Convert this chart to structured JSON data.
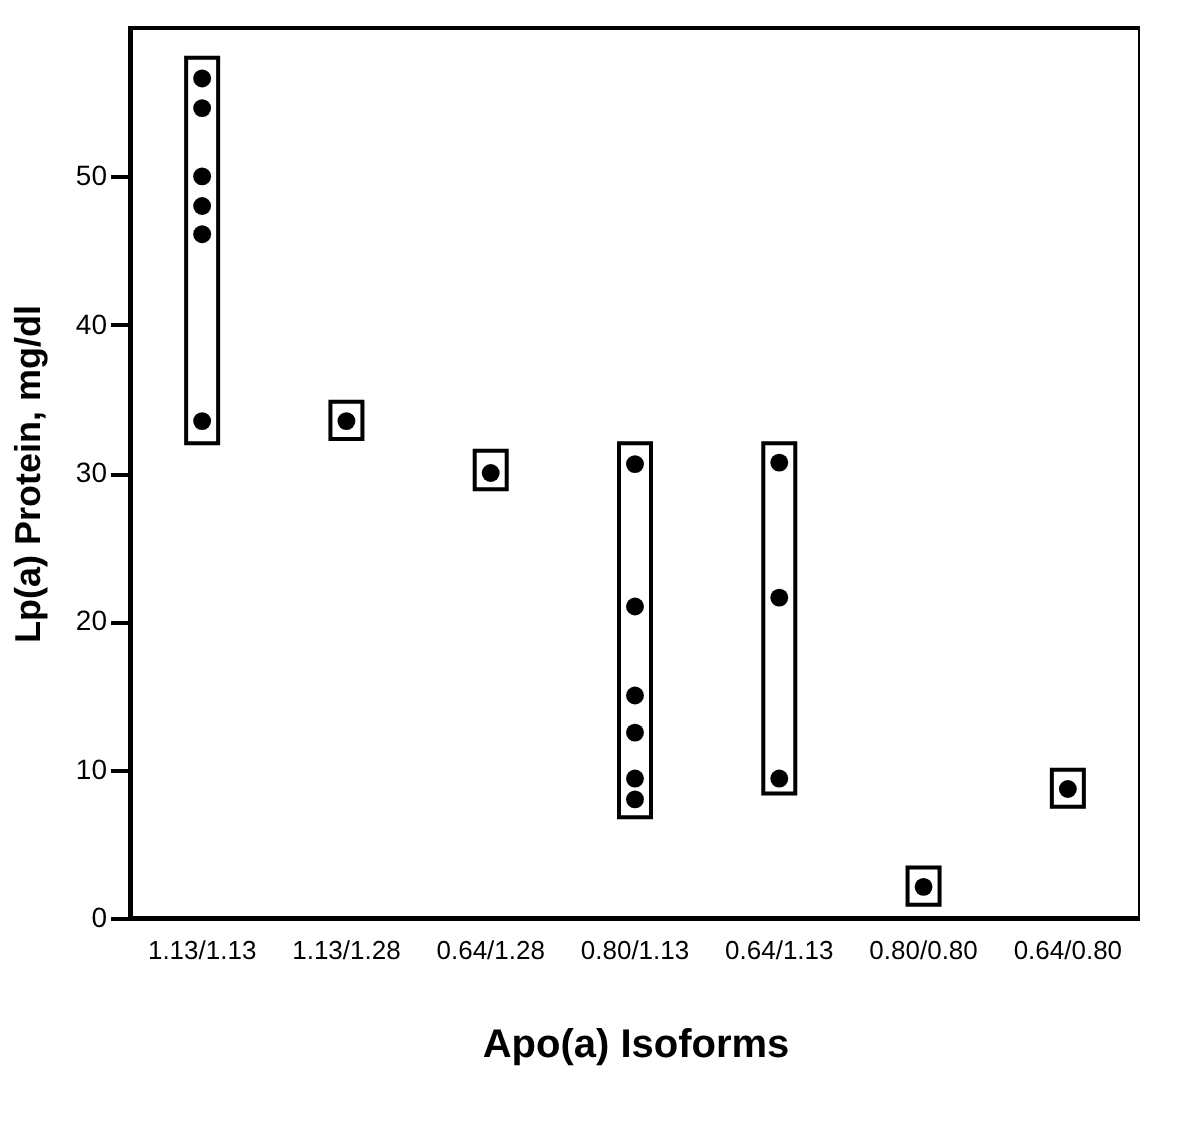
{
  "chart_data": {
    "type": "scatter",
    "xlabel": "Apo(a) Isoforms",
    "ylabel": "Lp(a) Protein, mg/dl",
    "categories": [
      "1.13/1.13",
      "1.13/1.28",
      "0.64/1.28",
      "0.80/1.13",
      "0.64/1.13",
      "0.80/0.80",
      "0.64/0.80"
    ],
    "ylim": [
      0,
      60
    ],
    "yticks": [
      0,
      10,
      20,
      30,
      40,
      50
    ],
    "grid": false,
    "marker": "circle",
    "series": [
      {
        "type": "bar",
        "color": "#000000",
        "base": [
          32,
          32.3,
          28.9,
          6.8,
          8.4,
          0.9,
          7.5
        ],
        "values": [
          26,
          2.5,
          2.6,
          25.2,
          23.6,
          2.5,
          2.5
        ]
      },
      {
        "color": "#000000",
        "x": [
          "1.13/1.13",
          "1.13/1.13",
          "1.13/1.13",
          "1.13/1.13",
          "1.13/1.13",
          "1.13/1.13",
          "1.13/1.28",
          "0.64/1.28",
          "0.80/1.13",
          "0.80/1.13",
          "0.80/1.13",
          "0.80/1.13",
          "0.80/1.13",
          "0.80/1.13",
          "0.64/1.13",
          "0.64/1.13",
          "0.64/1.13",
          "0.80/0.80",
          "0.64/0.80"
        ],
        "values": [
          56.6,
          54.6,
          50.0,
          48.0,
          46.1,
          33.5,
          33.5,
          30.0,
          30.6,
          21.0,
          15.0,
          12.5,
          9.4,
          8.0,
          30.7,
          21.6,
          9.4,
          2.1,
          8.7
        ]
      }
    ]
  }
}
